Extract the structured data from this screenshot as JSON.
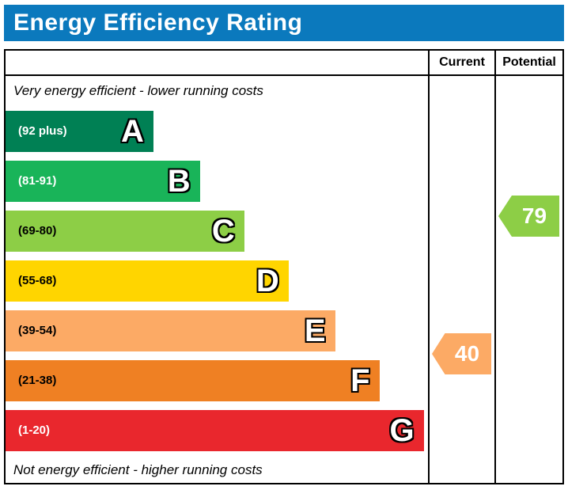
{
  "header": {
    "title": "Energy Efficiency Rating"
  },
  "colors": {
    "header_bar": "#0b79bd",
    "border": "#000000"
  },
  "columns": {
    "current_label": "Current",
    "potential_label": "Potential"
  },
  "notes": {
    "top": "Very energy efficient - lower running costs",
    "bottom": "Not energy efficient - higher running costs"
  },
  "chart_data": {
    "type": "bar",
    "title": "Energy Efficiency Rating",
    "bands": [
      {
        "letter": "A",
        "range": "(92 plus)",
        "min": 92,
        "max": 100,
        "color": "#008054",
        "text_color": "#ffffff",
        "width_pct": 35
      },
      {
        "letter": "B",
        "range": "(81-91)",
        "min": 81,
        "max": 91,
        "color": "#19b459",
        "text_color": "#ffffff",
        "width_pct": 46
      },
      {
        "letter": "C",
        "range": "(69-80)",
        "min": 69,
        "max": 80,
        "color": "#8dce46",
        "text_color": "#000000",
        "width_pct": 56.5
      },
      {
        "letter": "D",
        "range": "(55-68)",
        "min": 55,
        "max": 68,
        "color": "#ffd500",
        "text_color": "#000000",
        "width_pct": 67
      },
      {
        "letter": "E",
        "range": "(39-54)",
        "min": 39,
        "max": 54,
        "color": "#fcaa65",
        "text_color": "#000000",
        "width_pct": 78
      },
      {
        "letter": "F",
        "range": "(21-38)",
        "min": 21,
        "max": 38,
        "color": "#ef8023",
        "text_color": "#000000",
        "width_pct": 88.5
      },
      {
        "letter": "G",
        "range": "(1-20)",
        "min": 1,
        "max": 20,
        "color": "#e9272d",
        "text_color": "#ffffff",
        "width_pct": 99
      }
    ],
    "current": {
      "value": 40,
      "band": "E",
      "color": "#fcaa65"
    },
    "potential": {
      "value": 79,
      "band": "C",
      "color": "#8dce46"
    }
  }
}
